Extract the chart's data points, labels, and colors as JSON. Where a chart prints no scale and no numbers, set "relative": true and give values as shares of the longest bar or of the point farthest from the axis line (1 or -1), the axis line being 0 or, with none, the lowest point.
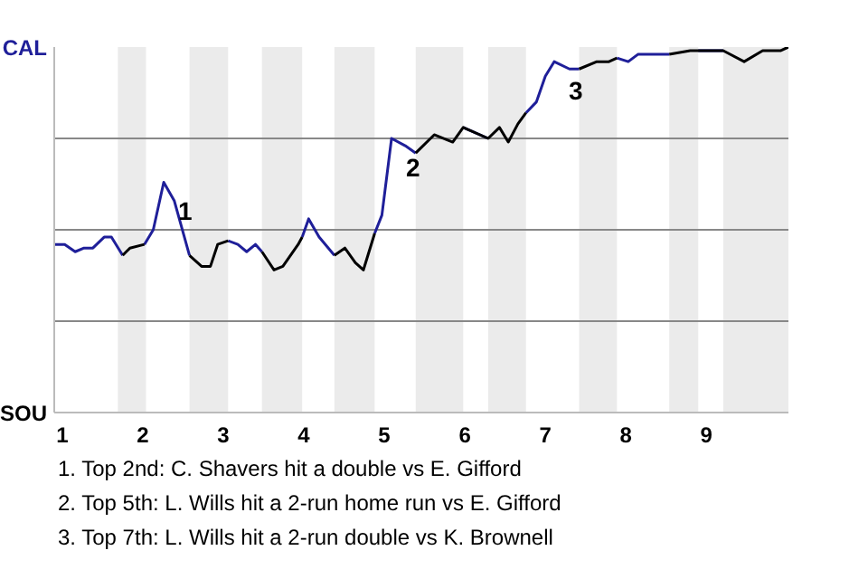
{
  "chart_data": {
    "type": "line",
    "relative": true,
    "x": [
      0.9,
      1.03,
      1.16,
      1.27,
      1.38,
      1.52,
      1.61,
      1.75,
      1.84,
      2.02,
      2.13,
      2.26,
      2.39,
      2.58,
      2.73,
      2.84,
      2.93,
      3.06,
      3.18,
      3.29,
      3.4,
      3.48,
      3.63,
      3.74,
      3.93,
      3.98,
      4.06,
      4.19,
      4.38,
      4.51,
      4.64,
      4.74,
      4.88,
      4.97,
      5.09,
      5.26,
      5.39,
      5.62,
      5.85,
      5.98,
      6.29,
      6.43,
      6.54,
      6.66,
      6.76,
      6.89,
      7.0,
      7.11,
      7.3,
      7.42,
      7.64,
      7.79,
      7.89,
      8.03,
      8.15,
      8.39,
      8.54,
      8.8,
      8.9,
      9.21,
      9.47,
      9.7,
      9.92,
      10.02
    ],
    "series": [
      {
        "color": "#1f1f99",
        "values": [
          0.46,
          0.46,
          0.44,
          0.45,
          0.45,
          0.48,
          0.48,
          0.43,
          null,
          0.46,
          0.5,
          0.63,
          0.58,
          0.43,
          null,
          null,
          null,
          0.47,
          0.46,
          0.44,
          0.46,
          0.44,
          null,
          null,
          null,
          0.48,
          0.53,
          0.48,
          0.43,
          null,
          null,
          null,
          0.49,
          0.54,
          0.75,
          0.73,
          0.71,
          null,
          null,
          0.78,
          0.75,
          null,
          null,
          null,
          0.82,
          0.85,
          0.92,
          0.96,
          0.94,
          0.94,
          null,
          null,
          0.97,
          0.96,
          0.98,
          0.98,
          0.98,
          null,
          0.99,
          0.99,
          null,
          null,
          null,
          null
        ]
      },
      {
        "color": "#000000",
        "values": [
          null,
          null,
          null,
          null,
          null,
          null,
          null,
          0.43,
          0.45,
          0.46,
          null,
          null,
          null,
          0.43,
          0.4,
          0.4,
          0.46,
          0.47,
          null,
          null,
          null,
          0.44,
          0.39,
          0.4,
          0.46,
          0.48,
          null,
          null,
          0.43,
          0.45,
          0.41,
          0.39,
          0.49,
          null,
          null,
          null,
          0.71,
          0.76,
          0.74,
          0.78,
          0.75,
          0.78,
          0.74,
          0.79,
          0.82,
          null,
          null,
          null,
          null,
          0.94,
          0.96,
          0.96,
          0.97,
          null,
          null,
          null,
          0.98,
          0.99,
          0.99,
          0.99,
          0.96,
          0.99,
          0.99,
          1.0
        ]
      }
    ],
    "xlim": [
      0.9,
      10.02
    ],
    "xticks": [
      1,
      2,
      3,
      4,
      5,
      6,
      7,
      8,
      9
    ],
    "bands": [
      {
        "axis": "x",
        "from": 1.69,
        "to": 2.04,
        "color": "#ebebeb"
      },
      {
        "axis": "x",
        "from": 2.58,
        "to": 3.06,
        "color": "#ebebeb"
      },
      {
        "axis": "x",
        "from": 3.48,
        "to": 3.98,
        "color": "#ebebeb"
      },
      {
        "axis": "x",
        "from": 4.38,
        "to": 4.88,
        "color": "#ebebeb"
      },
      {
        "axis": "x",
        "from": 5.39,
        "to": 5.98,
        "color": "#ebebeb"
      },
      {
        "axis": "x",
        "from": 6.29,
        "to": 6.76,
        "color": "#ebebeb"
      },
      {
        "axis": "x",
        "from": 7.42,
        "to": 7.89,
        "color": "#ebebeb"
      },
      {
        "axis": "x",
        "from": 8.54,
        "to": 8.9,
        "color": "#ebebeb"
      },
      {
        "axis": "x",
        "from": 9.21,
        "to": 10.02,
        "color": "#ebebeb"
      }
    ],
    "ref_lines": [
      {
        "axis": "y",
        "value": 0.25,
        "color": "#888888"
      },
      {
        "axis": "y",
        "value": 0.5,
        "color": "#888888"
      },
      {
        "axis": "y",
        "value": 0.75,
        "color": "#888888"
      }
    ],
    "annotations": [
      "CAL",
      "SOU",
      {
        "text": "1",
        "x": 2.26,
        "y": 0.63
      },
      {
        "text": "2",
        "x": 5.09,
        "y": 0.75
      },
      {
        "text": "3",
        "x": 7.11,
        "y": 0.96
      },
      "1. Top 2nd: C. Shavers hit a double vs E. Gifford",
      "2. Top 5th: L. Wills hit a 2-run home run vs E. Gifford",
      "3. Top 7th: L. Wills hit a 2-run double vs K. Brownell"
    ]
  }
}
